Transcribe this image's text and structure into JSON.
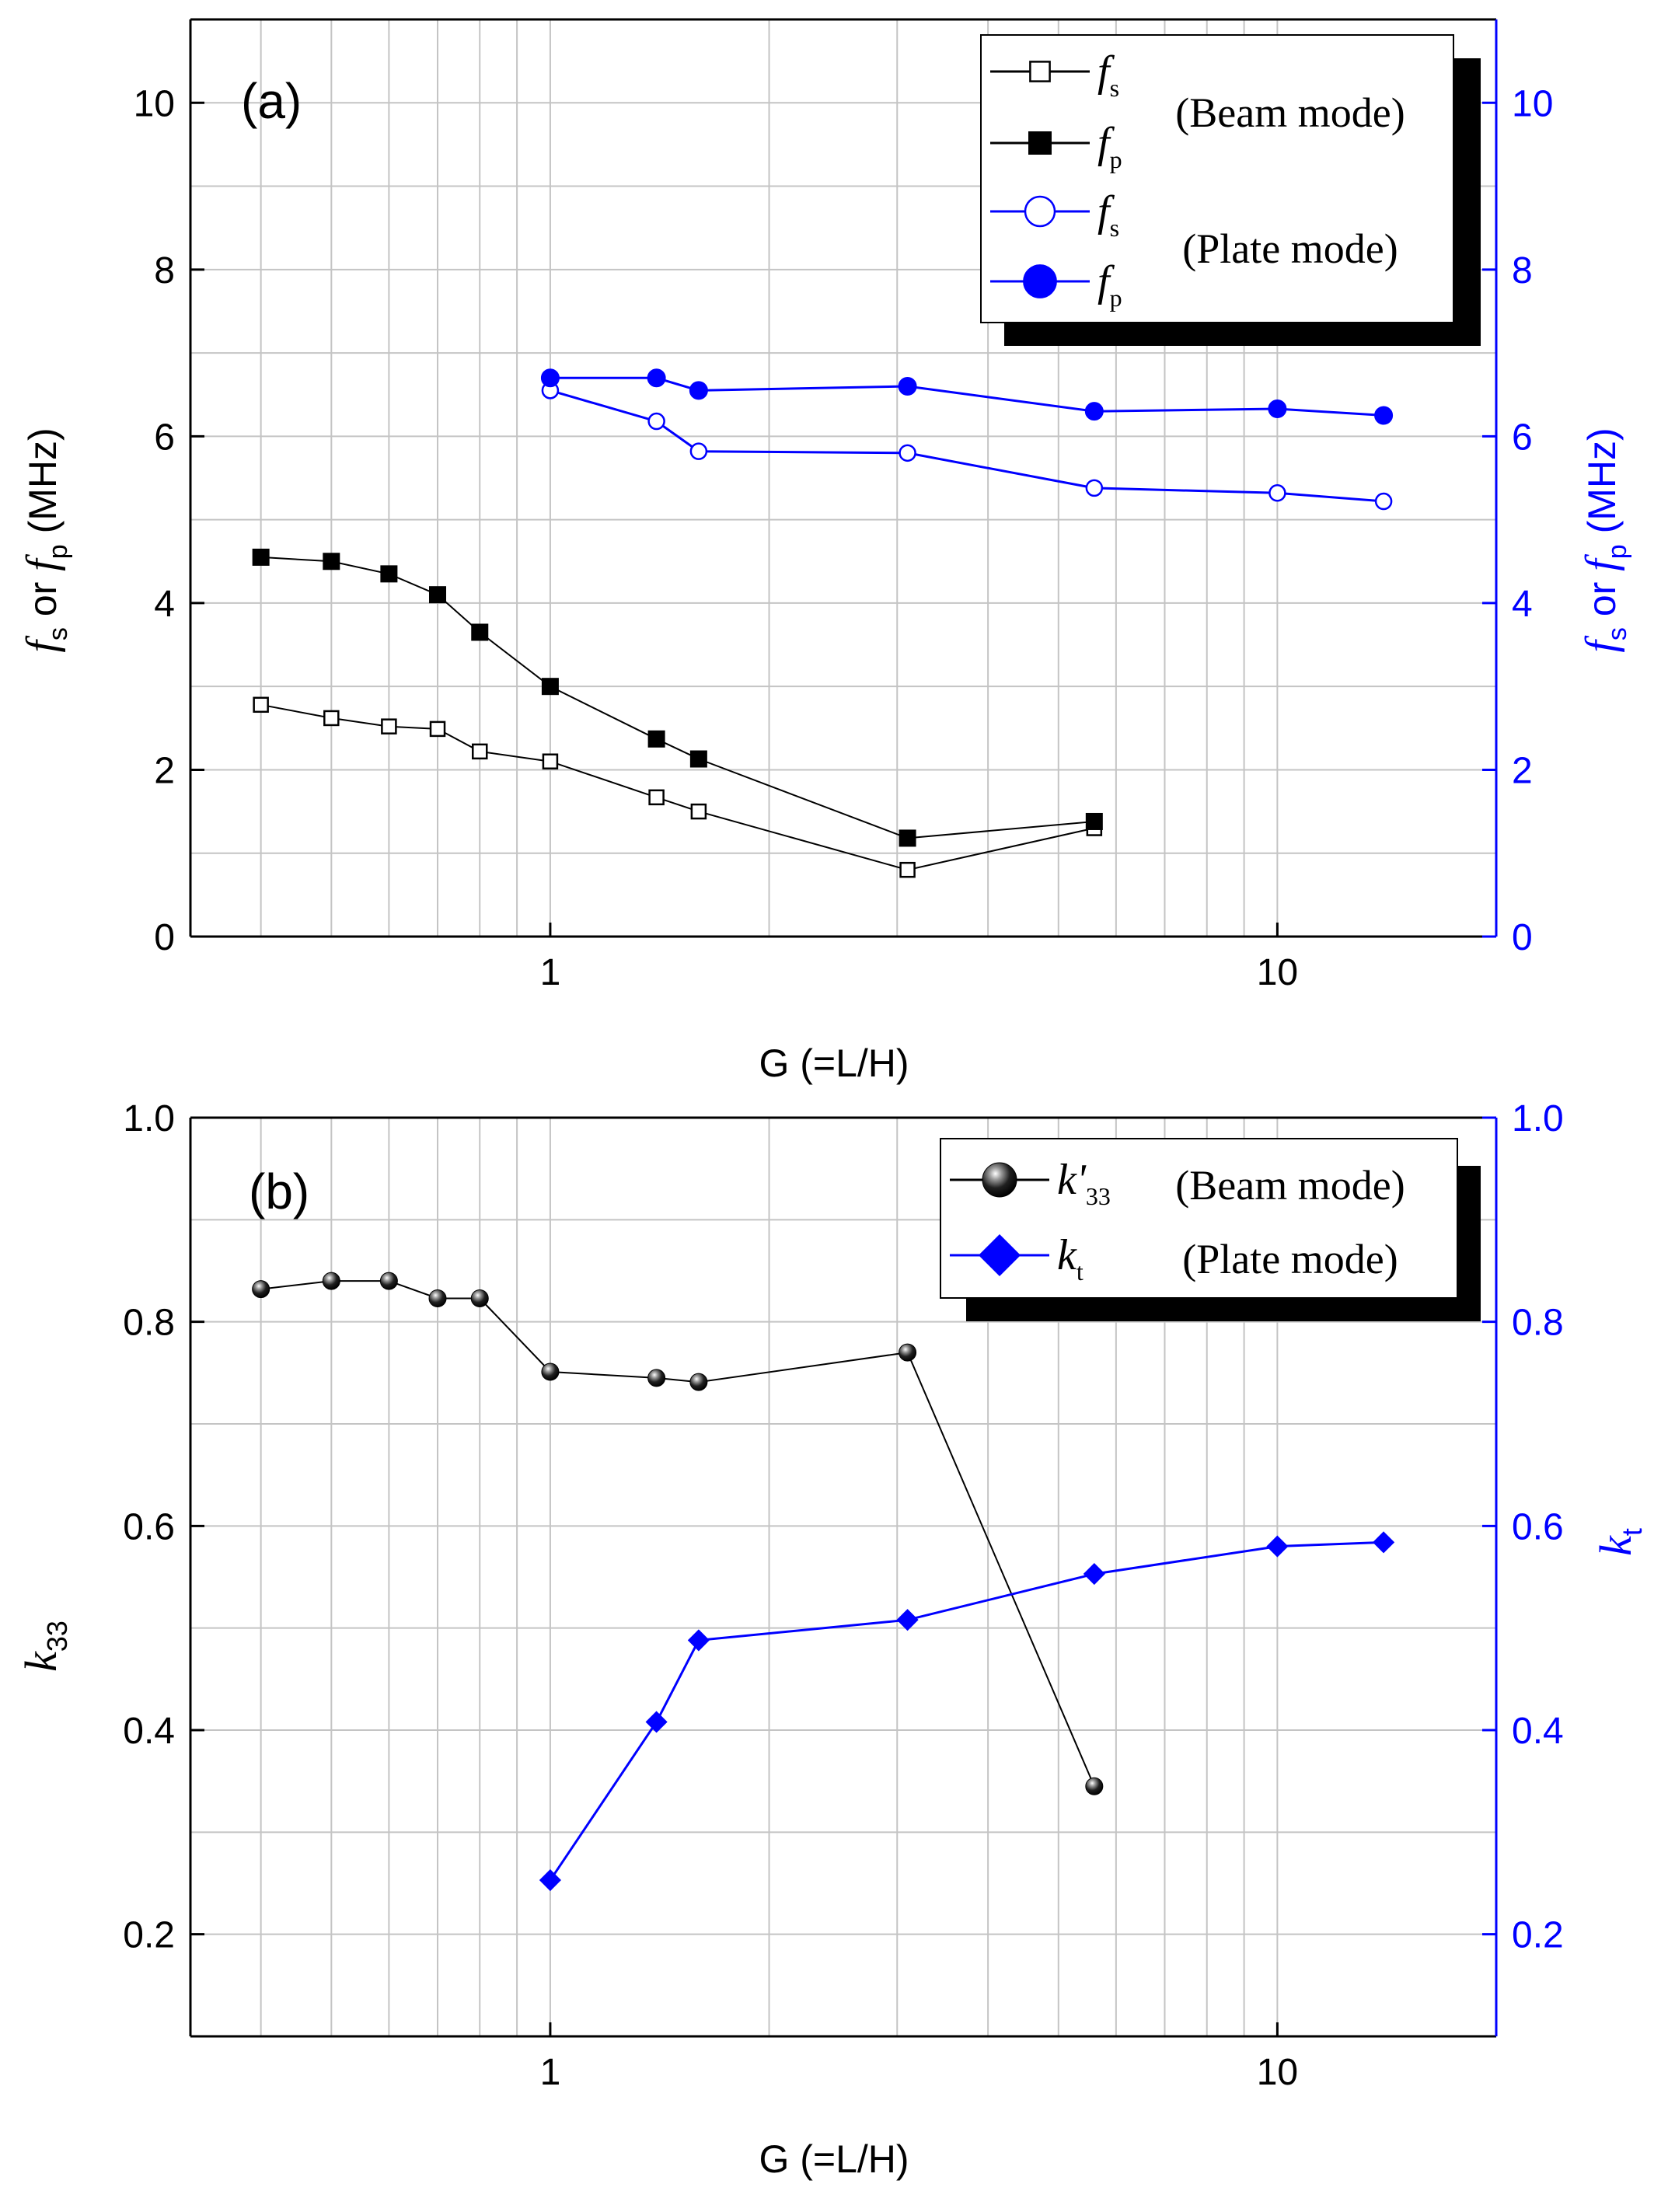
{
  "chart_data": [
    {
      "panel_label": "(a)",
      "type": "line",
      "xscale": "log",
      "xlim": [
        0.32,
        20
      ],
      "x_ticks": [
        "1",
        "10"
      ],
      "xlabel": "G (=L/H)",
      "ylabel": {
        "f1": "f",
        "s1": "s",
        "mid": " or ",
        "f2": "f",
        "s2": "p",
        "unit": " (MHz)"
      },
      "ylim": [
        0,
        11
      ],
      "y_ticks": [
        "0",
        "2",
        "4",
        "6",
        "8",
        "10"
      ],
      "right_y_ticks": [
        "0",
        "2",
        "4",
        "6",
        "8",
        "10"
      ],
      "grid": true,
      "legend_position": "top-right",
      "legend_groups": [
        "(Beam mode)",
        "(Plate mode)"
      ],
      "series": [
        {
          "name": "f_s (Beam mode)",
          "sym": "f",
          "sub": "s",
          "group": 0,
          "color": "#000000",
          "marker": "square-open",
          "x": [
            0.4,
            0.5,
            0.6,
            0.7,
            0.8,
            1.0,
            1.4,
            1.6,
            3.1,
            5.6
          ],
          "values": [
            2.78,
            2.62,
            2.52,
            2.49,
            2.22,
            2.1,
            1.67,
            1.5,
            0.8,
            1.3
          ]
        },
        {
          "name": "f_p (Beam mode)",
          "sym": "f",
          "sub": "p",
          "group": 0,
          "color": "#000000",
          "marker": "square-filled",
          "x": [
            0.4,
            0.5,
            0.6,
            0.7,
            0.8,
            1.0,
            1.4,
            1.6,
            3.1,
            5.6
          ],
          "values": [
            4.55,
            4.5,
            4.35,
            4.1,
            3.65,
            3.0,
            2.37,
            2.13,
            1.18,
            1.38
          ]
        },
        {
          "name": "f_s (Plate mode)",
          "sym": "f",
          "sub": "s",
          "group": 1,
          "color": "#0000ff",
          "marker": "circle-open",
          "x": [
            1.0,
            1.4,
            1.6,
            3.1,
            5.6,
            10.0,
            14.0
          ],
          "values": [
            6.55,
            6.18,
            5.82,
            5.8,
            5.38,
            5.32,
            5.22
          ]
        },
        {
          "name": "f_p (Plate mode)",
          "sym": "f",
          "sub": "p",
          "group": 1,
          "color": "#0000ff",
          "marker": "circle-filled",
          "x": [
            1.0,
            1.4,
            1.6,
            3.1,
            5.6,
            10.0,
            14.0
          ],
          "values": [
            6.7,
            6.7,
            6.55,
            6.6,
            6.3,
            6.33,
            6.25
          ]
        }
      ]
    },
    {
      "panel_label": "(b)",
      "type": "line",
      "xscale": "log",
      "xlim": [
        0.32,
        20
      ],
      "x_ticks": [
        "1",
        "10"
      ],
      "xlabel": "G (=L/H)",
      "ylabel": {
        "sym": "k",
        "sub": "33"
      },
      "right_ylabel": {
        "sym": "k",
        "sub": "t"
      },
      "ylim": [
        0.1,
        1.0
      ],
      "y_ticks": [
        "0.2",
        "0.4",
        "0.6",
        "0.8",
        "1.0"
      ],
      "right_y_ticks": [
        "0.2",
        "0.4",
        "0.6",
        "0.8",
        "1.0"
      ],
      "grid": true,
      "legend_position": "top-right",
      "legend_groups": [
        "(Beam mode)",
        "(Plate mode)"
      ],
      "series": [
        {
          "name": "k'33 (Beam mode)",
          "sym": "k'",
          "sub": "33",
          "group": 0,
          "color": "#000000",
          "marker": "sphere",
          "x": [
            0.4,
            0.5,
            0.6,
            0.7,
            0.8,
            1.0,
            1.4,
            1.6,
            3.1,
            5.6
          ],
          "values": [
            0.832,
            0.84,
            0.84,
            0.823,
            0.823,
            0.751,
            0.745,
            0.741,
            0.77,
            0.345
          ]
        },
        {
          "name": "kt (Plate mode)",
          "sym": "k",
          "sub": "t",
          "group": 1,
          "color": "#0000ff",
          "marker": "diamond",
          "x": [
            1.0,
            1.4,
            1.6,
            3.1,
            5.6,
            10.0,
            14.0
          ],
          "values": [
            0.253,
            0.408,
            0.488,
            0.508,
            0.553,
            0.58,
            0.584
          ]
        }
      ]
    }
  ]
}
